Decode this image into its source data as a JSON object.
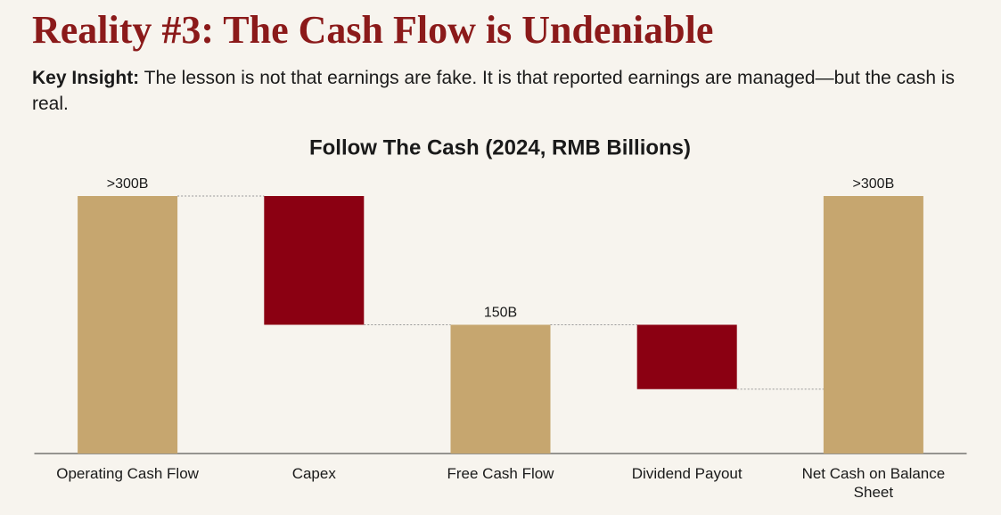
{
  "header": {
    "title": "Reality #3: The Cash Flow is Undeniable"
  },
  "insight": {
    "label": "Key Insight:",
    "text": "The lesson is not that earnings are fake. It is that reported earnings are managed—but the cash is real."
  },
  "chart_data": {
    "type": "waterfall",
    "title": "Follow The Cash (2024, RMB Billions)",
    "categories": [
      "Operating Cash Flow",
      "Capex",
      "Free Cash Flow",
      "Dividend Payout",
      "Net Cash on Balance Sheet"
    ],
    "values": [
      300,
      -150,
      150,
      -75,
      300
    ],
    "value_labels": [
      ">300B",
      null,
      "150B",
      null,
      ">300B"
    ],
    "total_color": "#c6a66f",
    "decrease_color": "#8b0012"
  }
}
